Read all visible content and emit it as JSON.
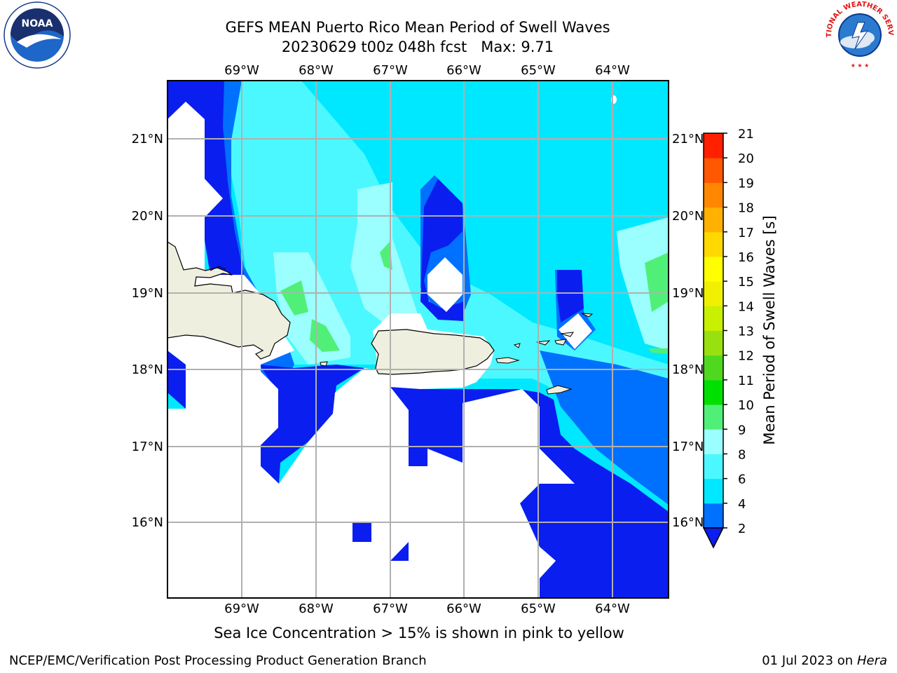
{
  "header": {
    "title_line1": "GEFS MEAN Puerto Rico Mean Period of Swell Waves",
    "title_line2": "20230629 t00z 048h fcst   Max: 9.71"
  },
  "logos": {
    "left": "NOAA",
    "right": "NATIONAL WEATHER SERVICE"
  },
  "map": {
    "lon_labels": [
      "69°W",
      "68°W",
      "67°W",
      "66°W",
      "65°W",
      "64°W"
    ],
    "lat_labels": [
      "21°N",
      "20°N",
      "19°N",
      "18°N",
      "17°N",
      "16°N"
    ],
    "land_color": "#efefdf",
    "background_color": "#ffffff",
    "grid_color": "#b0b0b0"
  },
  "colorbar": {
    "label": "Mean Period of Swell Waves [s]",
    "ticks": [
      "2",
      "4",
      "6",
      "8",
      "9",
      "10",
      "11",
      "12",
      "13",
      "14",
      "15",
      "16",
      "17",
      "18",
      "19",
      "20",
      "21"
    ],
    "colors": [
      "#0070ff",
      "#00e8ff",
      "#4cf8ff",
      "#9cffff",
      "#50f078",
      "#00e000",
      "#50d820",
      "#98e010",
      "#c8f000",
      "#f0f000",
      "#ffff00",
      "#ffd800",
      "#ffb000",
      "#ff8800",
      "#ff5800",
      "#ff2000"
    ],
    "under_color": "#0a1ef0"
  },
  "footer": {
    "subtitle": "Sea Ice Concentration > 15% is shown in pink to yellow",
    "left": "NCEP/EMC/Verification Post Processing Product Generation Branch",
    "date": "01 Jul 2023 on ",
    "host": "Hera"
  }
}
